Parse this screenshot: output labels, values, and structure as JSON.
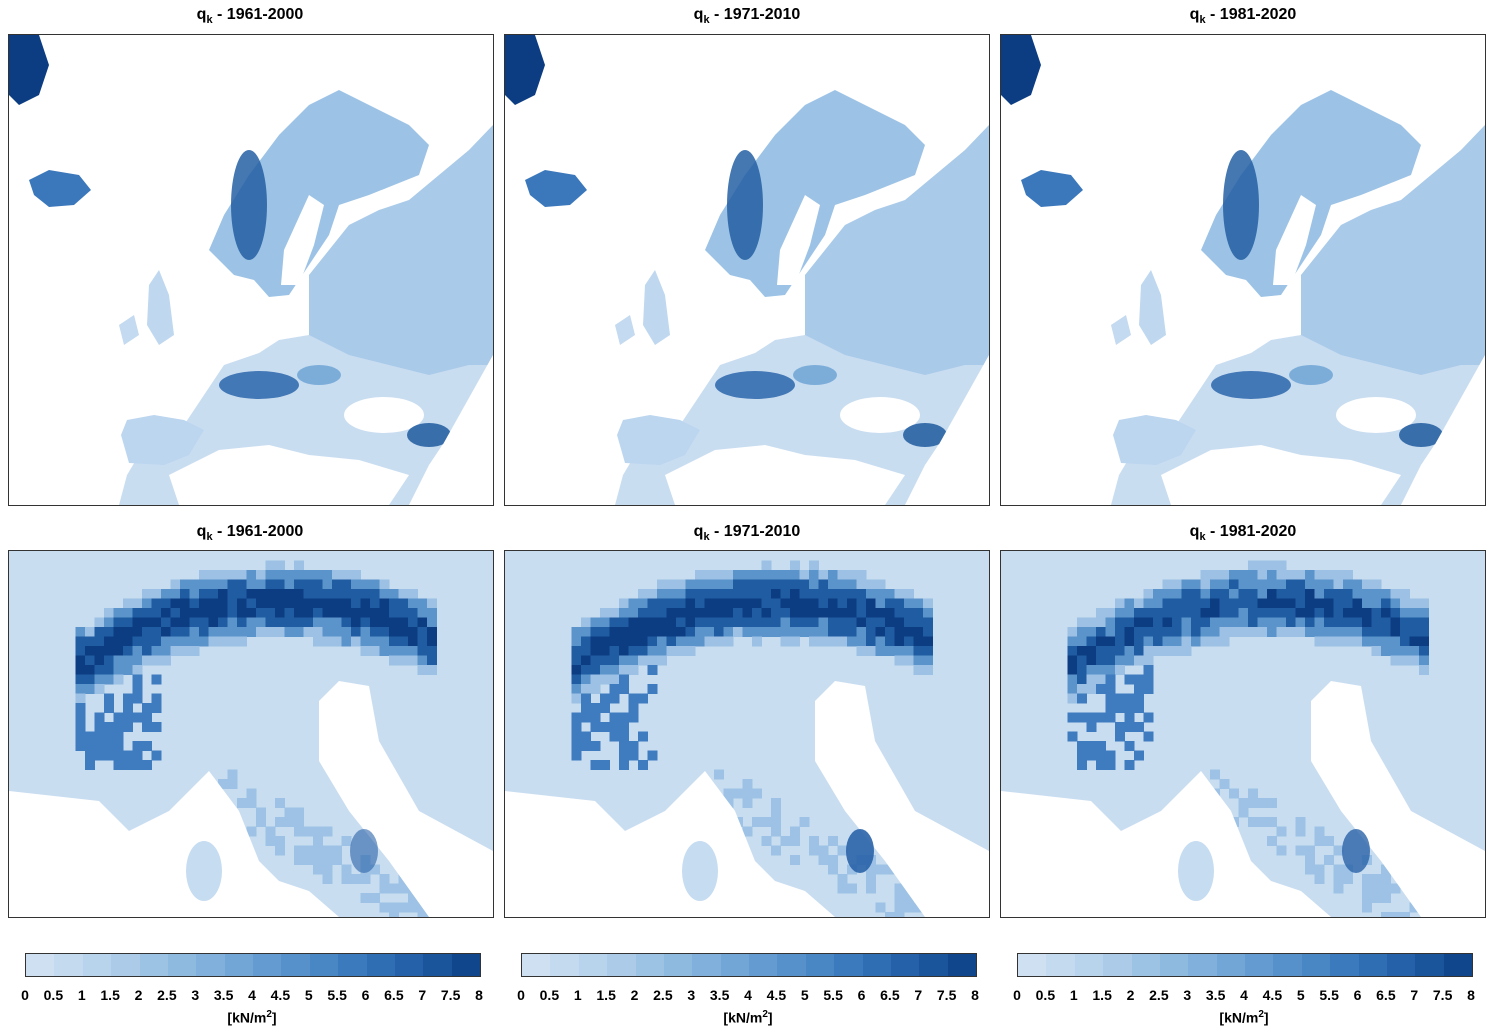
{
  "panels": [
    {
      "symbol": "q",
      "subscript": "k",
      "period": "- 1961-2000",
      "region": "europe"
    },
    {
      "symbol": "q",
      "subscript": "k",
      "period": "- 1971-2010",
      "region": "europe"
    },
    {
      "symbol": "q",
      "subscript": "k",
      "period": "- 1981-2020",
      "region": "europe"
    },
    {
      "symbol": "q",
      "subscript": "k",
      "period": "- 1961-2000",
      "region": "alps"
    },
    {
      "symbol": "q",
      "subscript": "k",
      "period": "- 1971-2010",
      "region": "alps"
    },
    {
      "symbol": "q",
      "subscript": "k",
      "period": "- 1981-2020",
      "region": "alps"
    }
  ],
  "colorbar": {
    "ticks": [
      "0",
      "0.5",
      "1",
      "1.5",
      "2",
      "2.5",
      "3",
      "3.5",
      "4",
      "4.5",
      "5",
      "5.5",
      "6",
      "6.5",
      "7",
      "7.5",
      "8"
    ],
    "unit_prefix": "[kN/m",
    "unit_sup": "2",
    "unit_suffix": "]",
    "colors": [
      "#cfe0f2",
      "#c4daef",
      "#b8d3ec",
      "#abcbe8",
      "#9dc3e4",
      "#8fbae0",
      "#80b0db",
      "#72a6d6",
      "#649cd1",
      "#5691cb",
      "#4886c4",
      "#3b7abc",
      "#2f6eb3",
      "#2461a8",
      "#1a549b",
      "#10478c"
    ]
  },
  "map_colors": {
    "sea": "#ffffff",
    "low": "#c9ddf1",
    "mid": "#7fb0dc",
    "high": "#3a79bb",
    "peak": "#0c3d82"
  }
}
